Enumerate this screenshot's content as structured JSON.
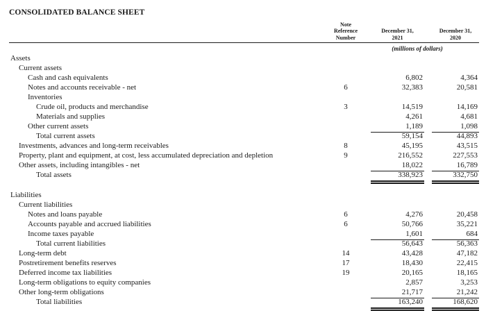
{
  "colors": {
    "text": "#1a1a1a",
    "background": "#ffffff"
  },
  "title": "CONSOLIDATED BALANCE SHEET",
  "header": {
    "note_column": "Note\nReference\nNumber",
    "col_2021": "December 31,\n2021",
    "col_2020": "December 31,\n2020",
    "units": "(millions of dollars)"
  },
  "rows": [
    {
      "label": "Assets",
      "indent": 0
    },
    {
      "label": "Current assets",
      "indent": 1
    },
    {
      "label": "Cash and cash equivalents",
      "indent": 2,
      "v2021": "6,802",
      "v2020": "4,364"
    },
    {
      "label": "Notes and accounts receivable - net",
      "indent": 2,
      "note": "6",
      "v2021": "32,383",
      "v2020": "20,581"
    },
    {
      "label": "Inventories",
      "indent": 2
    },
    {
      "label": "Crude oil, products and merchandise",
      "indent": 3,
      "note": "3",
      "v2021": "14,519",
      "v2020": "14,169"
    },
    {
      "label": "Materials and supplies",
      "indent": 3,
      "v2021": "4,261",
      "v2020": "4,681"
    },
    {
      "label": "Other current assets",
      "indent": 2,
      "v2021": "1,189",
      "v2020": "1,098",
      "rule_below": true
    },
    {
      "label": "Total current assets",
      "indent": 3,
      "v2021": "59,154",
      "v2020": "44,893"
    },
    {
      "label": "Investments, advances and long-term receivables",
      "indent": 1,
      "note": "8",
      "v2021": "45,195",
      "v2020": "43,515"
    },
    {
      "label": "Property, plant and equipment, at cost, less accumulated depreciation and depletion",
      "indent": 1,
      "note": "9",
      "v2021": "216,552",
      "v2020": "227,553"
    },
    {
      "label": "Other assets, including intangibles - net",
      "indent": 1,
      "v2021": "18,022",
      "v2020": "16,789",
      "rule_below": true
    },
    {
      "label": "Total assets",
      "indent": 3,
      "v2021": "338,923",
      "v2020": "332,750",
      "double_below": true
    },
    {
      "spacer": true
    },
    {
      "label": "Liabilities",
      "indent": 0
    },
    {
      "label": "Current liabilities",
      "indent": 1
    },
    {
      "label": "Notes and loans payable",
      "indent": 2,
      "note": "6",
      "v2021": "4,276",
      "v2020": "20,458"
    },
    {
      "label": "Accounts payable and accrued liabilities",
      "indent": 2,
      "note": "6",
      "v2021": "50,766",
      "v2020": "35,221"
    },
    {
      "label": "Income taxes payable",
      "indent": 2,
      "v2021": "1,601",
      "v2020": "684",
      "rule_below": true
    },
    {
      "label": "Total current liabilities",
      "indent": 3,
      "v2021": "56,643",
      "v2020": "56,363"
    },
    {
      "label": "Long-term debt",
      "indent": 1,
      "note": "14",
      "v2021": "43,428",
      "v2020": "47,182"
    },
    {
      "label": "Postretirement benefits reserves",
      "indent": 1,
      "note": "17",
      "v2021": "18,430",
      "v2020": "22,415"
    },
    {
      "label": "Deferred income tax liabilities",
      "indent": 1,
      "note": "19",
      "v2021": "20,165",
      "v2020": "18,165"
    },
    {
      "label": "Long-term obligations to equity companies",
      "indent": 1,
      "v2021": "2,857",
      "v2020": "3,253"
    },
    {
      "label": "Other long-term obligations",
      "indent": 1,
      "v2021": "21,717",
      "v2020": "21,242",
      "rule_below": true
    },
    {
      "label": "Total liabilities",
      "indent": 3,
      "v2021": "163,240",
      "v2020": "168,620",
      "double_below": true
    }
  ]
}
